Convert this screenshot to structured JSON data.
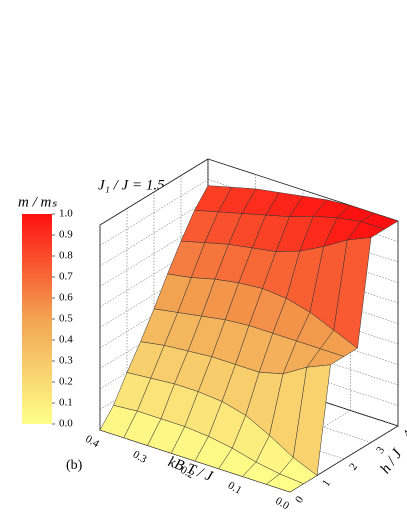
{
  "chart_data": {
    "type": "surface",
    "title": "J₁ / J = 1.5",
    "colorbar_label": "m / mₛ",
    "annotation": "(b)",
    "xlabel": "kB T / J",
    "ylabel": "h / J",
    "x": [
      0,
      0.05,
      0.1,
      0.15,
      0.2,
      0.25,
      0.3,
      0.35,
      0.4
    ],
    "y": [
      0,
      0.5,
      1,
      1.5,
      2,
      2.5,
      3,
      3.5,
      4
    ],
    "z": [
      [
        0,
        0,
        0,
        0.5,
        0.5,
        0.5,
        1,
        1,
        1
      ],
      [
        0,
        0.01,
        0.05,
        0.45,
        0.5,
        0.55,
        0.95,
        1,
        1
      ],
      [
        0,
        0.03,
        0.12,
        0.38,
        0.5,
        0.6,
        0.88,
        0.98,
        1
      ],
      [
        0,
        0.06,
        0.18,
        0.35,
        0.5,
        0.63,
        0.82,
        0.95,
        0.99
      ],
      [
        0,
        0.08,
        0.21,
        0.35,
        0.5,
        0.64,
        0.78,
        0.91,
        0.97
      ],
      [
        0,
        0.09,
        0.22,
        0.35,
        0.49,
        0.63,
        0.76,
        0.88,
        0.95
      ],
      [
        0,
        0.09,
        0.22,
        0.34,
        0.47,
        0.61,
        0.74,
        0.85,
        0.93
      ],
      [
        0,
        0.09,
        0.21,
        0.33,
        0.45,
        0.58,
        0.71,
        0.82,
        0.9
      ],
      [
        0,
        0.08,
        0.2,
        0.31,
        0.43,
        0.56,
        0.68,
        0.79,
        0.87
      ]
    ],
    "xlim": [
      0,
      0.4
    ],
    "xticks": [
      {
        "value": 0,
        "label": "0.0"
      },
      0.1,
      0.2,
      0.3,
      0.4
    ],
    "ylim": [
      0,
      4
    ],
    "yticks": [
      0,
      1,
      2,
      3,
      4
    ],
    "zlim": [
      0,
      1
    ],
    "zticks": [
      {
        "value": 0,
        "label": "0.0"
      },
      0.1,
      0.2,
      0.3,
      0.4,
      0.5,
      0.6,
      0.7,
      0.8,
      0.9,
      {
        "value": 1,
        "label": "1.0"
      }
    ],
    "colormap": [
      "#ffff8a",
      "#f2a452",
      "#ff1010"
    ],
    "grid": true
  }
}
